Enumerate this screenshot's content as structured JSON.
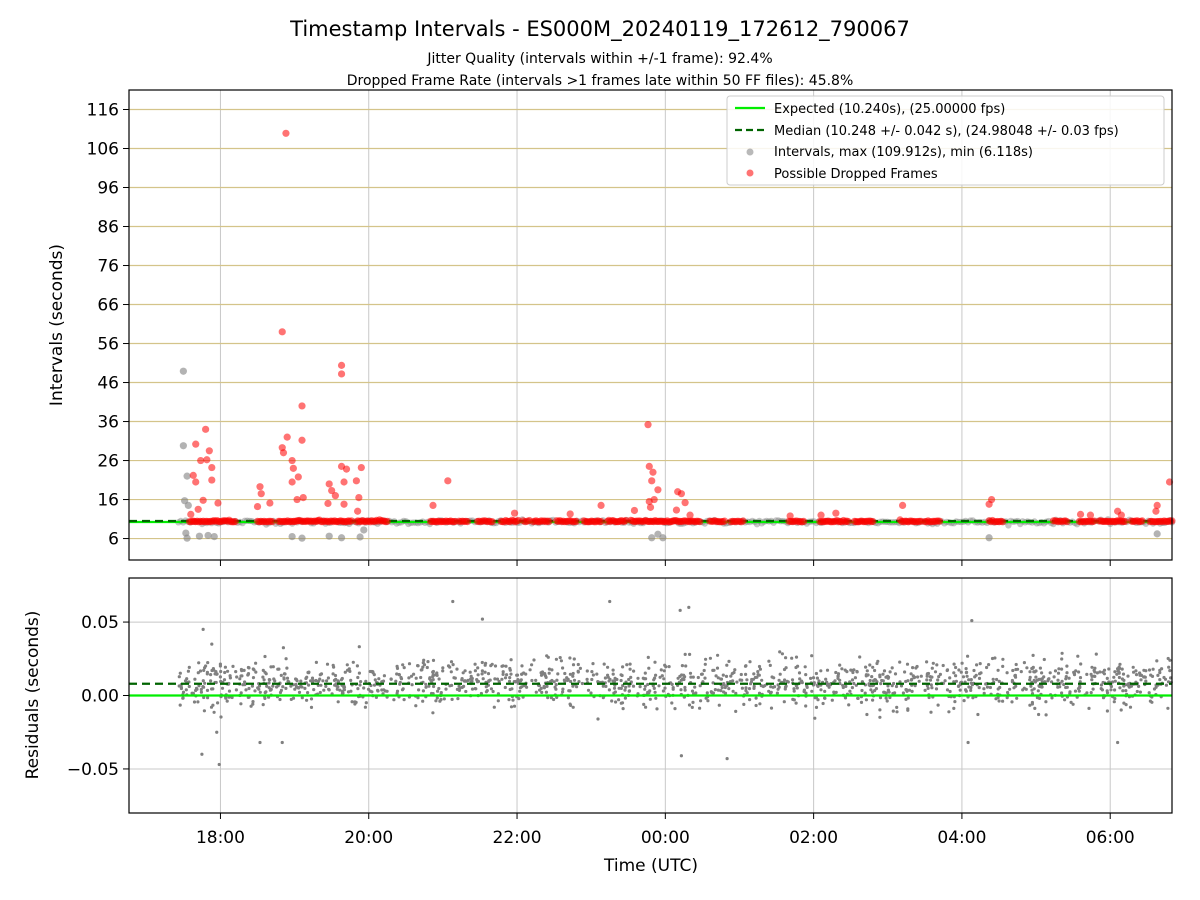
{
  "title": "Timestamp Intervals - ES000M_20240119_172612_790067",
  "subtitle_1": "Jitter Quality (intervals within +/-1 frame): 92.4%",
  "subtitle_2": "Dropped Frame Rate (intervals >1 frames late within 50 FF files): 45.8%",
  "colors": {
    "expected": "#00ee00",
    "median": "#006400",
    "intervals": "#808080",
    "dropped": "#ff0000",
    "hgrid_top": "#d4c48a",
    "grid": "#c8c8c8"
  },
  "chart_data": [
    {
      "type": "scatter",
      "name": "intervals-panel",
      "xlabel": "",
      "ylabel": "Intervals (seconds)",
      "x_range": [
        "2024-01-19 16:46",
        "2024-01-20 06:50"
      ],
      "ylim": [
        0.5,
        121
      ],
      "y_ticks": [
        6,
        16,
        26,
        36,
        46,
        56,
        66,
        76,
        86,
        96,
        106,
        116
      ],
      "x_ticks": [
        "2024-01-19 18:00",
        "2024-01-19 20:00",
        "2024-01-19 22:00",
        "2024-01-20 00:00",
        "2024-01-20 02:00",
        "2024-01-20 04:00",
        "2024-01-20 06:00"
      ],
      "x_tick_labels": [
        "18:00",
        "20:00",
        "22:00",
        "00:00",
        "02:00",
        "04:00",
        "06:00"
      ],
      "grid": true,
      "legend_position": "top-right",
      "legend": [
        "Expected (10.240s), (25.00000 fps)",
        "Median (10.248 +/- 0.042 s), (24.98048 +/- 0.03 fps)",
        "Intervals, max (109.912s), min (6.118s)",
        "Possible Dropped Frames"
      ],
      "expected_y": 10.24,
      "median_y": 10.248,
      "intervals_baseline_range": [
        "2024-01-19 17:26",
        "2024-01-20 06:50"
      ],
      "intervals_points": [
        {
          "x": "2024-01-19 17:30",
          "y": 48.9
        },
        {
          "x": "2024-01-19 17:30",
          "y": 29.8
        },
        {
          "x": "2024-01-19 17:33",
          "y": 22.0
        },
        {
          "x": "2024-01-19 17:31",
          "y": 15.7
        },
        {
          "x": "2024-01-19 17:34",
          "y": 14.5
        },
        {
          "x": "2024-01-19 17:32",
          "y": 7.4
        },
        {
          "x": "2024-01-19 17:33",
          "y": 6.1
        },
        {
          "x": "2024-01-19 17:43",
          "y": 6.6
        },
        {
          "x": "2024-01-19 17:50",
          "y": 6.8
        },
        {
          "x": "2024-01-19 17:55",
          "y": 6.5
        },
        {
          "x": "2024-01-19 18:58",
          "y": 6.5
        },
        {
          "x": "2024-01-19 19:06",
          "y": 6.1
        },
        {
          "x": "2024-01-19 19:28",
          "y": 6.6
        },
        {
          "x": "2024-01-19 19:38",
          "y": 6.2
        },
        {
          "x": "2024-01-19 19:53",
          "y": 6.4
        },
        {
          "x": "2024-01-19 19:56",
          "y": 8.2
        },
        {
          "x": "2024-01-19 23:49",
          "y": 6.2
        },
        {
          "x": "2024-01-19 23:54",
          "y": 7.1
        },
        {
          "x": "2024-01-19 23:58",
          "y": 6.2
        },
        {
          "x": "2024-01-20 04:22",
          "y": 6.2
        },
        {
          "x": "2024-01-20 06:38",
          "y": 7.2
        }
      ],
      "dropped_points": [
        {
          "x": "2024-01-19 17:40",
          "y": 30.2
        },
        {
          "x": "2024-01-19 17:48",
          "y": 34.0
        },
        {
          "x": "2024-01-19 17:51",
          "y": 28.5
        },
        {
          "x": "2024-01-19 17:49",
          "y": 26.2
        },
        {
          "x": "2024-01-19 17:44",
          "y": 26.0
        },
        {
          "x": "2024-01-19 17:53",
          "y": 24.2
        },
        {
          "x": "2024-01-19 17:38",
          "y": 22.2
        },
        {
          "x": "2024-01-19 17:40",
          "y": 20.5
        },
        {
          "x": "2024-01-19 17:53",
          "y": 21.0
        },
        {
          "x": "2024-01-19 17:46",
          "y": 15.8
        },
        {
          "x": "2024-01-19 17:58",
          "y": 15.1
        },
        {
          "x": "2024-01-19 17:42",
          "y": 13.5
        },
        {
          "x": "2024-01-19 17:36",
          "y": 12.2
        },
        {
          "x": "2024-01-19 18:50",
          "y": 59.0
        },
        {
          "x": "2024-01-19 18:53",
          "y": 109.9
        },
        {
          "x": "2024-01-19 19:06",
          "y": 40.0
        },
        {
          "x": "2024-01-19 19:06",
          "y": 31.2
        },
        {
          "x": "2024-01-19 18:54",
          "y": 32.0
        },
        {
          "x": "2024-01-19 18:50",
          "y": 29.3
        },
        {
          "x": "2024-01-19 18:51",
          "y": 28.0
        },
        {
          "x": "2024-01-19 18:58",
          "y": 26.0
        },
        {
          "x": "2024-01-19 18:59",
          "y": 24.0
        },
        {
          "x": "2024-01-19 19:03",
          "y": 21.8
        },
        {
          "x": "2024-01-19 18:58",
          "y": 20.5
        },
        {
          "x": "2024-01-19 18:32",
          "y": 19.3
        },
        {
          "x": "2024-01-19 18:33",
          "y": 17.5
        },
        {
          "x": "2024-01-19 18:30",
          "y": 14.2
        },
        {
          "x": "2024-01-19 18:40",
          "y": 15.1
        },
        {
          "x": "2024-01-19 19:02",
          "y": 16.0
        },
        {
          "x": "2024-01-19 19:07",
          "y": 16.5
        },
        {
          "x": "2024-01-19 19:28",
          "y": 20.0
        },
        {
          "x": "2024-01-19 19:30",
          "y": 18.3
        },
        {
          "x": "2024-01-19 19:33",
          "y": 17.0
        },
        {
          "x": "2024-01-19 19:27",
          "y": 15.0
        },
        {
          "x": "2024-01-19 19:38",
          "y": 50.4
        },
        {
          "x": "2024-01-19 19:38",
          "y": 48.2
        },
        {
          "x": "2024-01-19 19:38",
          "y": 24.5
        },
        {
          "x": "2024-01-19 19:42",
          "y": 23.8
        },
        {
          "x": "2024-01-19 19:40",
          "y": 20.5
        },
        {
          "x": "2024-01-19 19:40",
          "y": 14.8
        },
        {
          "x": "2024-01-19 19:54",
          "y": 24.2
        },
        {
          "x": "2024-01-19 19:50",
          "y": 20.8
        },
        {
          "x": "2024-01-19 19:52",
          "y": 16.5
        },
        {
          "x": "2024-01-19 19:51",
          "y": 13.0
        },
        {
          "x": "2024-01-19 20:52",
          "y": 14.5
        },
        {
          "x": "2024-01-19 21:04",
          "y": 20.8
        },
        {
          "x": "2024-01-19 21:58",
          "y": 12.5
        },
        {
          "x": "2024-01-19 22:43",
          "y": 12.3
        },
        {
          "x": "2024-01-19 23:08",
          "y": 14.5
        },
        {
          "x": "2024-01-19 23:35",
          "y": 13.2
        },
        {
          "x": "2024-01-19 23:47",
          "y": 15.5
        },
        {
          "x": "2024-01-19 23:48",
          "y": 14.0
        },
        {
          "x": "2024-01-19 23:46",
          "y": 35.2
        },
        {
          "x": "2024-01-19 23:47",
          "y": 24.5
        },
        {
          "x": "2024-01-19 23:50",
          "y": 23.0
        },
        {
          "x": "2024-01-19 23:49",
          "y": 20.8
        },
        {
          "x": "2024-01-19 23:54",
          "y": 18.5
        },
        {
          "x": "2024-01-19 23:51",
          "y": 16.0
        },
        {
          "x": "2024-01-20 00:10",
          "y": 18.0
        },
        {
          "x": "2024-01-20 00:13",
          "y": 17.5
        },
        {
          "x": "2024-01-20 00:16",
          "y": 15.2
        },
        {
          "x": "2024-01-20 00:09",
          "y": 13.3
        },
        {
          "x": "2024-01-20 00:20",
          "y": 12.0
        },
        {
          "x": "2024-01-20 01:41",
          "y": 11.8
        },
        {
          "x": "2024-01-20 02:06",
          "y": 12.0
        },
        {
          "x": "2024-01-20 02:18",
          "y": 12.5
        },
        {
          "x": "2024-01-20 03:12",
          "y": 14.5
        },
        {
          "x": "2024-01-20 04:24",
          "y": 16.0
        },
        {
          "x": "2024-01-20 04:22",
          "y": 14.8
        },
        {
          "x": "2024-01-20 05:36",
          "y": 12.2
        },
        {
          "x": "2024-01-20 05:44",
          "y": 12.0
        },
        {
          "x": "2024-01-20 06:06",
          "y": 13.0
        },
        {
          "x": "2024-01-20 06:09",
          "y": 12.0
        },
        {
          "x": "2024-01-20 06:38",
          "y": 14.5
        },
        {
          "x": "2024-01-20 06:37",
          "y": 13.0
        },
        {
          "x": "2024-01-20 06:48",
          "y": 20.5
        }
      ],
      "dropped_baseline_segments": [
        [
          "2024-01-19 17:35",
          "2024-01-19 18:12"
        ],
        [
          "2024-01-19 18:30",
          "2024-01-19 18:42"
        ],
        [
          "2024-01-19 18:47",
          "2024-01-19 19:46"
        ],
        [
          "2024-01-19 19:50",
          "2024-01-19 20:15"
        ],
        [
          "2024-01-19 20:50",
          "2024-01-19 21:10"
        ],
        [
          "2024-01-19 21:13",
          "2024-01-19 21:20"
        ],
        [
          "2024-01-19 21:28",
          "2024-01-19 21:40"
        ],
        [
          "2024-01-19 21:47",
          "2024-01-19 22:01"
        ],
        [
          "2024-01-19 22:05",
          "2024-01-19 22:10"
        ],
        [
          "2024-01-19 22:13",
          "2024-01-19 22:26"
        ],
        [
          "2024-01-19 22:32",
          "2024-01-19 22:48"
        ],
        [
          "2024-01-19 22:54",
          "2024-01-19 23:08"
        ],
        [
          "2024-01-19 23:13",
          "2024-01-19 23:28"
        ],
        [
          "2024-01-19 23:32",
          "2024-01-19 23:58"
        ],
        [
          "2024-01-19 23:59",
          "2024-01-20 00:28"
        ],
        [
          "2024-01-20 00:36",
          "2024-01-20 00:48"
        ],
        [
          "2024-01-20 00:53",
          "2024-01-20 01:03"
        ],
        [
          "2024-01-20 01:40",
          "2024-01-20 01:52"
        ],
        [
          "2024-01-20 02:05",
          "2024-01-20 02:28"
        ],
        [
          "2024-01-20 02:33",
          "2024-01-20 02:48"
        ],
        [
          "2024-01-20 03:10",
          "2024-01-20 03:27"
        ],
        [
          "2024-01-20 03:30",
          "2024-01-20 03:42"
        ],
        [
          "2024-01-20 04:22",
          "2024-01-20 04:33"
        ],
        [
          "2024-01-20 05:14",
          "2024-01-20 05:25"
        ],
        [
          "2024-01-20 05:35",
          "2024-01-20 05:47"
        ],
        [
          "2024-01-20 05:51",
          "2024-01-20 06:12"
        ],
        [
          "2024-01-20 06:17",
          "2024-01-20 06:26"
        ],
        [
          "2024-01-20 06:32",
          "2024-01-20 06:50"
        ]
      ]
    },
    {
      "type": "scatter",
      "name": "residuals-panel",
      "xlabel": "Time (UTC)",
      "ylabel": "Residuals (seconds)",
      "x_range": [
        "2024-01-19 16:46",
        "2024-01-20 06:50"
      ],
      "ylim": [
        -0.08,
        0.08
      ],
      "y_ticks": [
        -0.05,
        0.0,
        0.05
      ],
      "y_tick_labels": [
        "−0.05",
        "0.00",
        "0.05"
      ],
      "x_ticks": [
        "2024-01-19 18:00",
        "2024-01-19 20:00",
        "2024-01-19 22:00",
        "2024-01-20 00:00",
        "2024-01-20 02:00",
        "2024-01-20 04:00",
        "2024-01-20 06:00"
      ],
      "x_tick_labels": [
        "18:00",
        "20:00",
        "22:00",
        "00:00",
        "02:00",
        "04:00",
        "06:00"
      ],
      "grid": true,
      "expected_y": 0.0,
      "median_y": 0.008,
      "residual_band": {
        "center": 0.008,
        "std": 0.008,
        "x_start": "2024-01-19 17:26",
        "x_end": "2024-01-20 06:50",
        "count": 1500
      },
      "residual_outliers": [
        {
          "x": "2024-01-19 17:46",
          "y": 0.045
        },
        {
          "x": "2024-01-19 17:53",
          "y": 0.035
        },
        {
          "x": "2024-01-19 17:45",
          "y": -0.04
        },
        {
          "x": "2024-01-19 17:59",
          "y": -0.047
        },
        {
          "x": "2024-01-19 17:57",
          "y": -0.025
        },
        {
          "x": "2024-01-19 21:08",
          "y": 0.064
        },
        {
          "x": "2024-01-19 21:32",
          "y": 0.052
        },
        {
          "x": "2024-01-19 23:15",
          "y": 0.064
        },
        {
          "x": "2024-01-20 00:12",
          "y": 0.058
        },
        {
          "x": "2024-01-20 00:19",
          "y": 0.06
        },
        {
          "x": "2024-01-20 00:13",
          "y": -0.041
        },
        {
          "x": "2024-01-20 00:50",
          "y": -0.043
        },
        {
          "x": "2024-01-20 04:08",
          "y": 0.051
        },
        {
          "x": "2024-01-20 04:05",
          "y": -0.032
        },
        {
          "x": "2024-01-20 06:06",
          "y": -0.032
        },
        {
          "x": "2024-01-19 18:32",
          "y": -0.032
        },
        {
          "x": "2024-01-19 18:50",
          "y": -0.032
        }
      ]
    }
  ]
}
